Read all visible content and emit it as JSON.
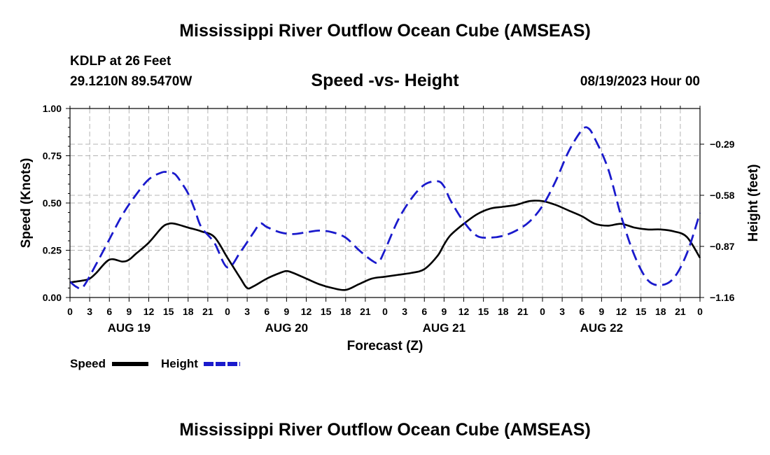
{
  "page": {
    "title": "Mississippi River Outflow Ocean Cube (AMSEAS)",
    "station": "KDLP at 26 Feet",
    "coords": "29.1210N  89.5470W",
    "subtitle": "Speed -vs- Height",
    "datetime": "08/19/2023 Hour 00",
    "footer_title": "Mississippi River Outflow Ocean Cube (AMSEAS)"
  },
  "colors": {
    "speed": "#000000",
    "height": "#1a1acc",
    "grid": "#b4b4b4"
  },
  "chart_data": {
    "type": "line",
    "title": "Speed -vs- Height",
    "xlabel": "Forecast (Z)",
    "ylabel": "Speed (Knots)",
    "y2label": "Height (feet)",
    "xlim": [
      0,
      96
    ],
    "ylim": [
      0,
      1
    ],
    "y2lim": [
      -1.16,
      -0.0875
    ],
    "x_ticks": [
      0,
      3,
      6,
      9,
      12,
      15,
      18,
      21,
      24,
      27,
      30,
      33,
      36,
      39,
      42,
      45,
      48,
      51,
      54,
      57,
      60,
      63,
      66,
      69,
      72,
      75,
      78,
      81,
      84,
      87,
      90,
      93,
      96
    ],
    "x_tick_labels": [
      "0",
      "3",
      "6",
      "9",
      "12",
      "15",
      "18",
      "21",
      "0",
      "3",
      "6",
      "9",
      "12",
      "15",
      "18",
      "21",
      "0",
      "3",
      "6",
      "9",
      "12",
      "15",
      "18",
      "21",
      "0",
      "3",
      "6",
      "9",
      "12",
      "15",
      "18",
      "21",
      "0"
    ],
    "y_ticks": [
      0,
      0.25,
      0.5,
      0.75,
      1.0
    ],
    "y_tick_labels": [
      "0.00",
      "0.25",
      "0.50",
      "0.75",
      "1.00"
    ],
    "y2_ticks": [
      -0.29,
      -0.58,
      -0.87,
      -1.16
    ],
    "y2_tick_labels": [
      "−0.29",
      "−0.58",
      "−0.87",
      "−1.16"
    ],
    "days": [
      {
        "label": "AUG 19",
        "x": 9
      },
      {
        "label": "AUG 20",
        "x": 33
      },
      {
        "label": "AUG 21",
        "x": 57
      },
      {
        "label": "AUG 22",
        "x": 81
      }
    ],
    "legend": [
      {
        "name": "Speed",
        "style": "solid"
      },
      {
        "name": "Height",
        "style": "dashed"
      }
    ],
    "series": [
      {
        "name": "Speed",
        "axis": "left",
        "x": [
          0,
          2,
          3,
          4,
          6,
          8,
          9,
          10,
          12,
          14,
          15,
          16,
          18,
          20,
          22,
          24,
          26,
          27,
          28,
          30,
          32,
          33,
          34,
          36,
          38,
          40,
          42,
          44,
          46,
          48,
          50,
          52,
          54,
          56,
          57,
          58,
          60,
          62,
          64,
          66,
          68,
          70,
          72,
          74,
          76,
          78,
          80,
          82,
          84,
          86,
          88,
          90,
          92,
          94,
          96
        ],
        "values": [
          0.08,
          0.09,
          0.1,
          0.13,
          0.2,
          0.19,
          0.2,
          0.23,
          0.29,
          0.37,
          0.39,
          0.39,
          0.37,
          0.35,
          0.32,
          0.21,
          0.1,
          0.05,
          0.06,
          0.1,
          0.13,
          0.14,
          0.13,
          0.1,
          0.07,
          0.05,
          0.04,
          0.07,
          0.1,
          0.11,
          0.12,
          0.13,
          0.15,
          0.22,
          0.28,
          0.33,
          0.39,
          0.44,
          0.47,
          0.48,
          0.49,
          0.51,
          0.51,
          0.49,
          0.46,
          0.43,
          0.39,
          0.38,
          0.39,
          0.37,
          0.36,
          0.36,
          0.35,
          0.32,
          0.21
        ]
      },
      {
        "name": "Height",
        "axis": "right",
        "x": [
          0,
          1,
          2,
          4,
          6,
          8,
          10,
          12,
          14,
          15,
          16,
          17,
          18,
          19,
          20,
          22,
          24,
          26,
          28,
          29,
          30,
          32,
          34,
          36,
          38,
          40,
          42,
          44,
          46,
          47,
          48,
          50,
          52,
          54,
          56,
          57,
          58,
          60,
          62,
          64,
          66,
          68,
          70,
          72,
          74,
          76,
          78,
          79,
          80,
          82,
          84,
          86,
          88,
          90,
          92,
          94,
          96
        ],
        "values": [
          -1.07,
          -1.1,
          -1.1,
          -0.97,
          -0.83,
          -0.69,
          -0.58,
          -0.49,
          -0.45,
          -0.45,
          -0.46,
          -0.51,
          -0.57,
          -0.66,
          -0.76,
          -0.85,
          -0.99,
          -0.9,
          -0.79,
          -0.74,
          -0.76,
          -0.79,
          -0.8,
          -0.79,
          -0.78,
          -0.79,
          -0.82,
          -0.89,
          -0.95,
          -0.96,
          -0.89,
          -0.72,
          -0.6,
          -0.52,
          -0.5,
          -0.53,
          -0.61,
          -0.73,
          -0.81,
          -0.82,
          -0.81,
          -0.78,
          -0.73,
          -0.64,
          -0.5,
          -0.33,
          -0.21,
          -0.2,
          -0.26,
          -0.43,
          -0.7,
          -0.92,
          -1.06,
          -1.09,
          -1.05,
          -0.91,
          -0.68
        ]
      }
    ]
  }
}
